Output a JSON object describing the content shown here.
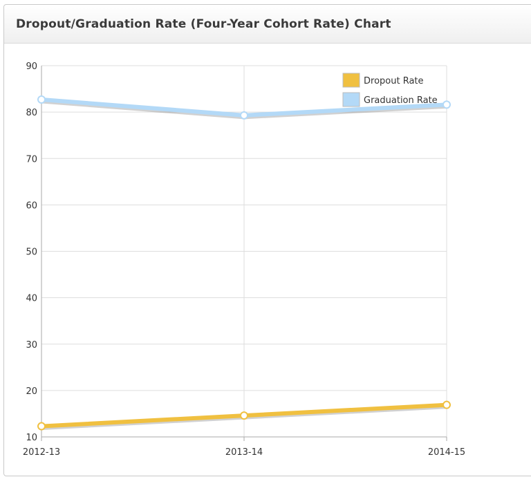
{
  "panel": {
    "title": "Dropout/Graduation Rate (Four-Year Cohort Rate) Chart"
  },
  "chart_data": {
    "type": "line",
    "title": "",
    "xlabel": "",
    "ylabel": "",
    "categories": [
      "2012-13",
      "2013-14",
      "2014-15"
    ],
    "ylim": [
      10,
      90
    ],
    "yticks": [
      10,
      20,
      30,
      40,
      50,
      60,
      70,
      80,
      90
    ],
    "grid": true,
    "legend_position": "top-right",
    "series": [
      {
        "name": "Dropout Rate",
        "values": [
          12.3,
          14.6,
          16.9
        ],
        "color": "#f0c040"
      },
      {
        "name": "Graduation Rate",
        "values": [
          82.7,
          79.3,
          81.6
        ],
        "color": "#b3d9f7"
      }
    ]
  }
}
